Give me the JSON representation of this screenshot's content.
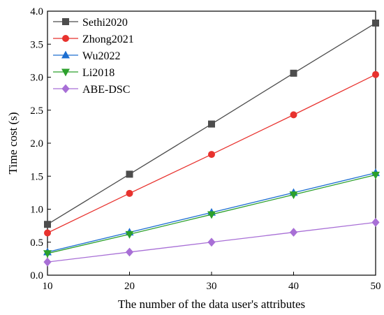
{
  "chart_data": {
    "type": "line",
    "xlabel": "The number of the data user's attributes",
    "ylabel": "Time cost (s)",
    "xlim": [
      10,
      50
    ],
    "ylim": [
      0.0,
      4.0
    ],
    "xticks": [
      "10",
      "20",
      "30",
      "40",
      "50"
    ],
    "yticks": [
      "0.0",
      "0.5",
      "1.0",
      "1.5",
      "2.0",
      "2.5",
      "3.0",
      "3.5",
      "4.0"
    ],
    "grid": false,
    "legend_position": "top-left",
    "x": [
      10,
      20,
      30,
      40,
      50
    ],
    "series": [
      {
        "name": "Sethi2020",
        "values": [
          0.77,
          1.53,
          2.29,
          3.06,
          3.82
        ],
        "color": "#4d4d4d",
        "marker": "square"
      },
      {
        "name": "Zhong2021",
        "values": [
          0.64,
          1.24,
          1.83,
          2.43,
          3.04
        ],
        "color": "#e8322e",
        "marker": "circle"
      },
      {
        "name": "Wu2022",
        "values": [
          0.35,
          0.65,
          0.95,
          1.25,
          1.55
        ],
        "color": "#1d6fd1",
        "marker": "triangle-up"
      },
      {
        "name": "Li2018",
        "values": [
          0.33,
          0.62,
          0.92,
          1.22,
          1.52
        ],
        "color": "#2ca02c",
        "marker": "triangle-down"
      },
      {
        "name": "ABE-DSC",
        "values": [
          0.2,
          0.35,
          0.5,
          0.65,
          0.8
        ],
        "color": "#a86fd6",
        "marker": "diamond"
      }
    ]
  }
}
